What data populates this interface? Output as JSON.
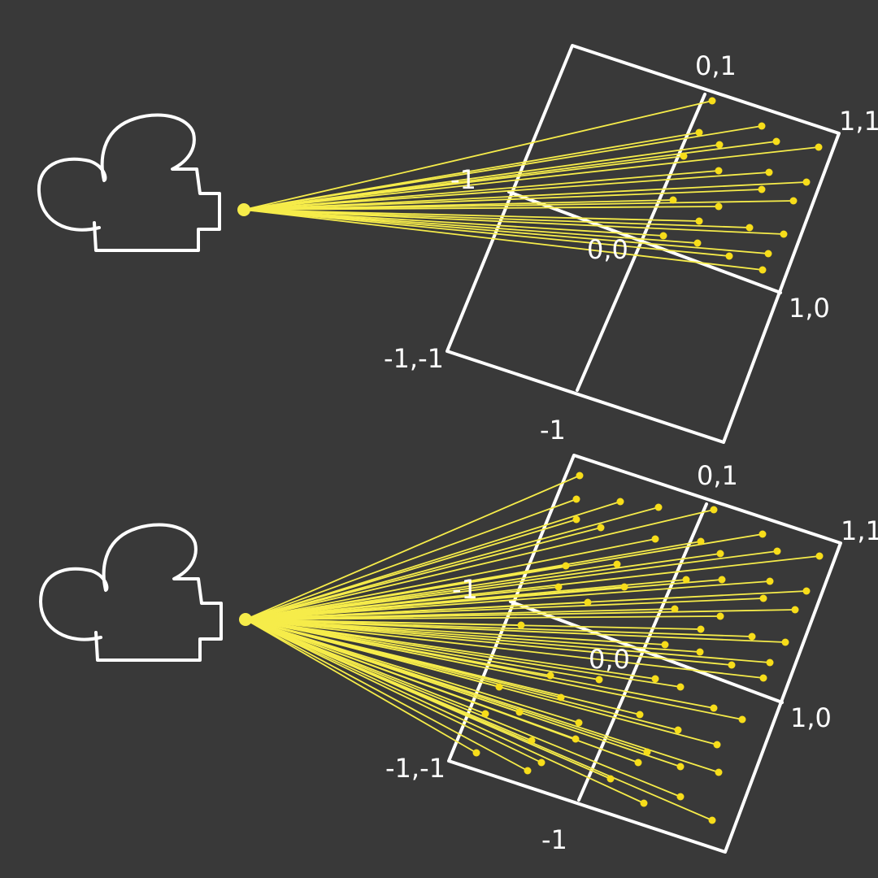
{
  "panels": [
    {
      "id": "top",
      "labels": {
        "top_mid": "0,1",
        "top_right": "1,1",
        "center": "0,0",
        "right_mid": "1,0",
        "bottom_left": "-1,-1",
        "left_mid": "-1",
        "bottom_mid": "-1"
      }
    },
    {
      "id": "bottom",
      "labels": {
        "top_mid": "0,1",
        "top_right": "1,1",
        "center": "0,0",
        "right_mid": "1,0",
        "bottom_left": "-1,-1",
        "left_mid": "-1",
        "bottom_mid": "-1"
      }
    }
  ],
  "colors": {
    "background": "#393939",
    "outline": "#ffffff",
    "ray": "#f6ec4a",
    "point": "#f7dd1a"
  },
  "icons": [
    "camera-icon"
  ]
}
